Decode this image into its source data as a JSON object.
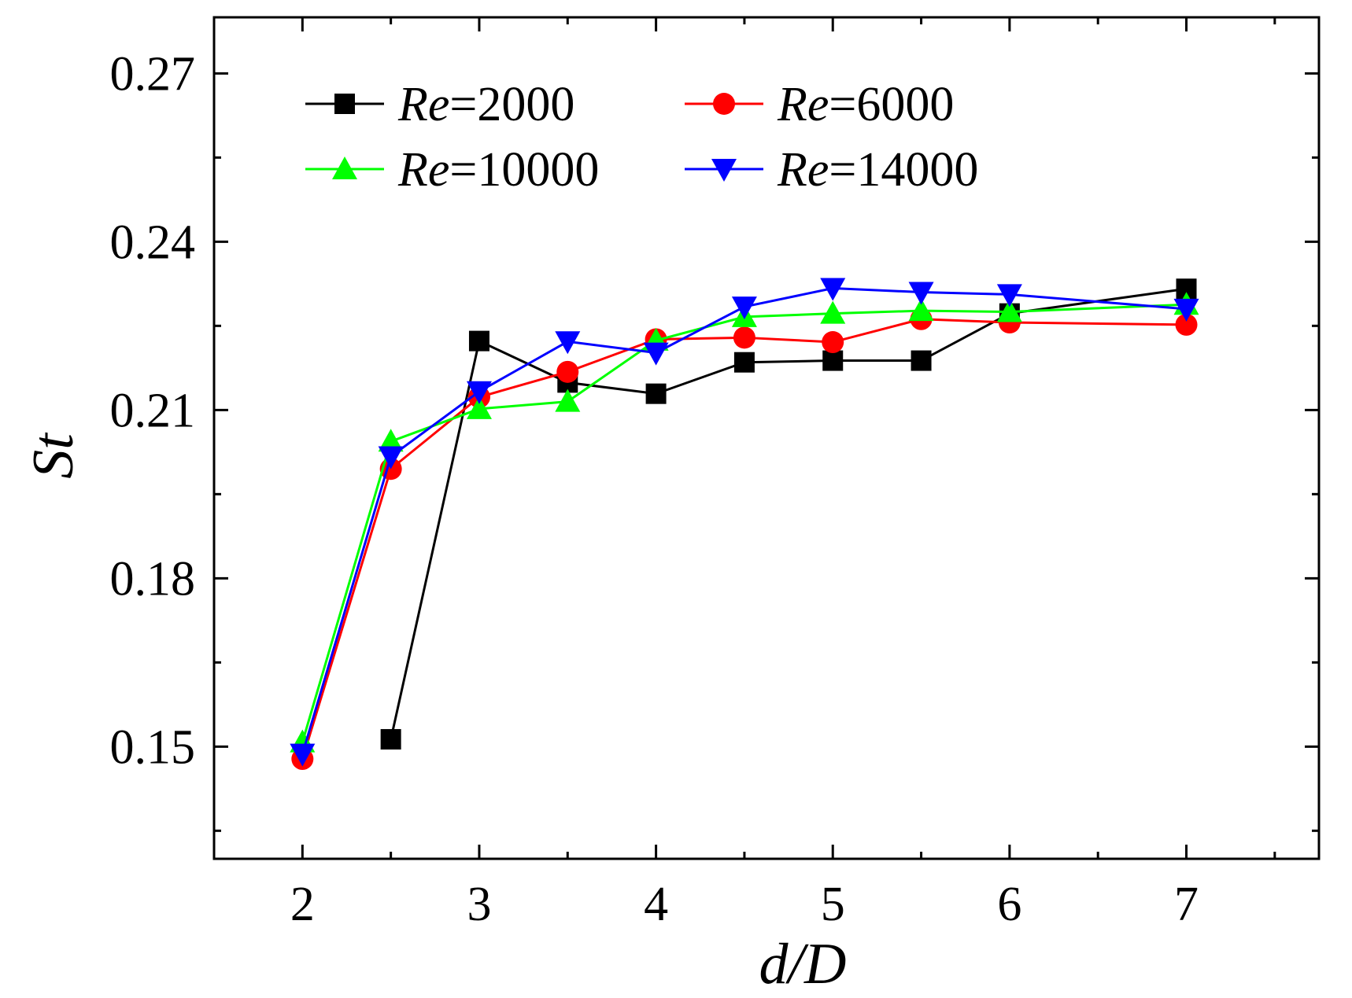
{
  "chart_data": {
    "type": "line",
    "title": "",
    "xlabel": "d/D",
    "ylabel": "St",
    "xlim": [
      1.5,
      7.75
    ],
    "ylim": [
      0.13,
      0.28
    ],
    "xticks": [
      2,
      3,
      4,
      5,
      6,
      7
    ],
    "xtick_labels": [
      "2",
      "3",
      "4",
      "5",
      "6",
      "7"
    ],
    "yticks": [
      0.15,
      0.18,
      0.21,
      0.24,
      0.27
    ],
    "ytick_labels": [
      "0.15",
      "0.18",
      "0.21",
      "0.24",
      "0.27"
    ],
    "grid": false,
    "legend_position": "top-left",
    "series": [
      {
        "name": "Re=2000",
        "name_italic": "Re",
        "name_rest": "=2000",
        "color": "#000000",
        "marker": "square",
        "x": [
          2.5,
          3,
          3.5,
          4,
          4.5,
          5,
          5.5,
          6,
          7
        ],
        "values": [
          0.1513,
          0.2223,
          0.2149,
          0.2129,
          0.2185,
          0.2188,
          0.2188,
          0.2272,
          0.2316
        ]
      },
      {
        "name": "Re=6000",
        "name_italic": "Re",
        "name_rest": "=6000",
        "color": "#ff0000",
        "marker": "circle",
        "x": [
          2,
          2.5,
          3,
          3.5,
          4,
          4.5,
          5,
          5.5,
          6,
          7
        ],
        "values": [
          0.1478,
          0.1995,
          0.2123,
          0.2168,
          0.2226,
          0.2229,
          0.2221,
          0.2262,
          0.2256,
          0.2252
        ]
      },
      {
        "name": "Re=10000",
        "name_italic": "Re",
        "name_rest": "=10000",
        "color": "#00ff00",
        "marker": "triangle-up",
        "x": [
          2,
          2.5,
          3,
          3.5,
          4,
          4.5,
          5,
          5.5,
          6,
          7
        ],
        "values": [
          0.1508,
          0.2044,
          0.2102,
          0.2115,
          0.2224,
          0.2266,
          0.2272,
          0.2277,
          0.2275,
          0.2288
        ]
      },
      {
        "name": "Re=14000",
        "name_italic": "Re",
        "name_rest": "=14000",
        "color": "#0000ff",
        "marker": "triangle-down",
        "x": [
          2,
          2.5,
          3,
          3.5,
          4,
          4.5,
          5,
          5.5,
          6,
          7
        ],
        "values": [
          0.1487,
          0.2017,
          0.2133,
          0.2222,
          0.2202,
          0.2284,
          0.2317,
          0.231,
          0.2306,
          0.228
        ]
      }
    ]
  }
}
